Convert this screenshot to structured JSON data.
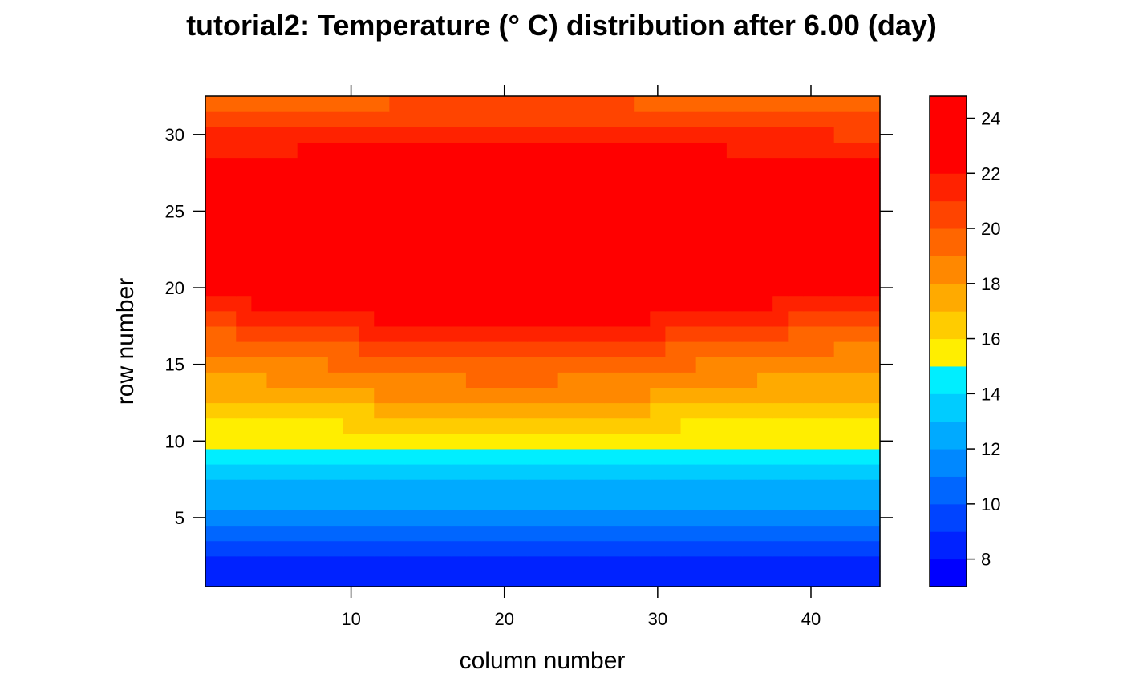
{
  "chart_data": {
    "type": "heatmap",
    "title": "tutorial2: Temperature (° C) distribution after 6.00 (day)",
    "xlabel": "column number",
    "ylabel": "row number",
    "ncols": 44,
    "nrows": 32,
    "xlim": [
      0.5,
      44.5
    ],
    "ylim": [
      0.5,
      32.5
    ],
    "x_ticks": [
      10,
      20,
      30,
      40
    ],
    "y_ticks": [
      5,
      10,
      15,
      20,
      25,
      30
    ],
    "field_model": {
      "peak_value": 24.2,
      "peak_col": 20.5,
      "peak_row": 23,
      "bottom_value": 7.2,
      "bottom_row": 1,
      "top_value": 17,
      "corner_value": 17,
      "left_edge_value": 16.5,
      "right_edge_value": 16,
      "pinch_rows": 13,
      "pinch_cols": 26,
      "spread_rows": 7,
      "spread_cols": 22
    },
    "legend": {
      "position": "right",
      "min": 7,
      "max": 24.8,
      "ticks": [
        8,
        10,
        12,
        14,
        16,
        18,
        20,
        22,
        24
      ],
      "levels": [
        {
          "from": 7,
          "to": 8,
          "color": "#0000FF"
        },
        {
          "from": 8,
          "to": 9,
          "color": "#0022FF"
        },
        {
          "from": 9,
          "to": 10,
          "color": "#0044FF"
        },
        {
          "from": 10,
          "to": 11,
          "color": "#0066FF"
        },
        {
          "from": 11,
          "to": 12,
          "color": "#0088FF"
        },
        {
          "from": 12,
          "to": 13,
          "color": "#00AAFF"
        },
        {
          "from": 13,
          "to": 14,
          "color": "#00CCFF"
        },
        {
          "from": 14,
          "to": 15,
          "color": "#00EEFF"
        },
        {
          "from": 15,
          "to": 16,
          "color": "#FFEE00"
        },
        {
          "from": 16,
          "to": 17,
          "color": "#FFCC00"
        },
        {
          "from": 17,
          "to": 18,
          "color": "#FFAA00"
        },
        {
          "from": 18,
          "to": 19,
          "color": "#FF8800"
        },
        {
          "from": 19,
          "to": 20,
          "color": "#FF6600"
        },
        {
          "from": 20,
          "to": 21,
          "color": "#FF4400"
        },
        {
          "from": 21,
          "to": 22,
          "color": "#FF2200"
        },
        {
          "from": 22,
          "to": 24.8,
          "color": "#FF0000"
        }
      ]
    }
  }
}
